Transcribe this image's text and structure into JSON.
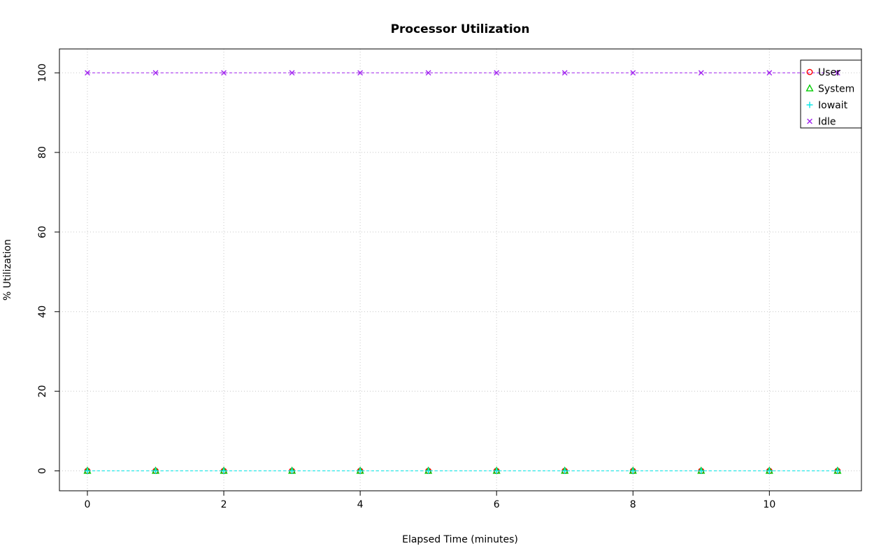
{
  "page": {
    "background": "#ffffff"
  },
  "chart_data": {
    "type": "line",
    "title": "Processor Utilization",
    "xlabel": "Elapsed Time (minutes)",
    "ylabel": "% Utilization",
    "x": [
      0,
      1,
      2,
      3,
      4,
      5,
      6,
      7,
      8,
      9,
      10,
      11
    ],
    "series": [
      {
        "name": "User",
        "color": "#ff0000",
        "marker": "circle",
        "values": [
          0,
          0,
          0,
          0,
          0,
          0,
          0,
          0,
          0,
          0,
          0,
          0
        ]
      },
      {
        "name": "System",
        "color": "#00cd00",
        "marker": "triangle",
        "values": [
          0,
          0,
          0,
          0,
          0,
          0,
          0,
          0,
          0,
          0,
          0,
          0
        ]
      },
      {
        "name": "Iowait",
        "color": "#00e5e5",
        "marker": "plus",
        "values": [
          0,
          0,
          0,
          0,
          0,
          0,
          0,
          0,
          0,
          0,
          0,
          0
        ]
      },
      {
        "name": "Idle",
        "color": "#a020f0",
        "marker": "x",
        "values": [
          100,
          100,
          100,
          100,
          100,
          100,
          100,
          100,
          100,
          100,
          100,
          100
        ]
      }
    ],
    "xticks": [
      0,
      2,
      4,
      6,
      8,
      10
    ],
    "yticks": [
      0,
      20,
      40,
      60,
      80,
      100
    ],
    "xlim": [
      -0.41,
      11.35
    ],
    "ylim": [
      -5,
      106
    ],
    "grid": true,
    "grid_color": "#c6c6c6",
    "axis_color": "#000000",
    "line_style": "dashed",
    "legend": {
      "position": "top-right"
    }
  }
}
